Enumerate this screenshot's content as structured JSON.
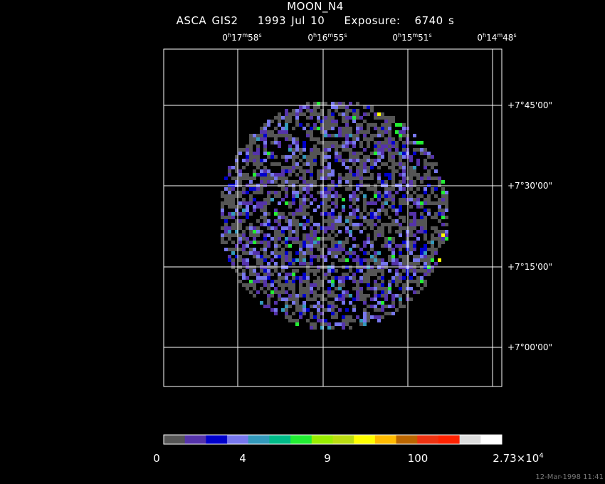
{
  "title": "MOON_N4",
  "subtitle": {
    "instrument": "ASCA GIS2",
    "date": "1993 Jul 10",
    "exposure_label": "Exposure:",
    "exposure_value": "6740 s"
  },
  "timestamp": "12-Mar-1998 11:41",
  "colors": {
    "background": "#000000",
    "grid": "#ffffff",
    "colorbar": [
      "#555555",
      "#5533aa",
      "#0000cc",
      "#7777ee",
      "#3399bb",
      "#00bb88",
      "#22ee33",
      "#99ee00",
      "#bbdd11",
      "#ffff00",
      "#ffbb00",
      "#bb6600",
      "#ee3311",
      "#ff2200",
      "#dddddd",
      "#ffffff"
    ]
  },
  "chart_data": {
    "type": "heatmap",
    "title": "MOON_N4",
    "subtitle": "ASCA GIS2   1993 Jul 10   Exposure:  6740 s",
    "x_axis": {
      "ticks": [
        {
          "h": "0",
          "m": "17",
          "s": "58"
        },
        {
          "h": "0",
          "m": "16",
          "s": "55"
        },
        {
          "h": "0",
          "m": "15",
          "s": "51"
        },
        {
          "h": "0",
          "m": "14",
          "s": "48"
        }
      ]
    },
    "y_axis": {
      "ticks": [
        "+7°45'00\"",
        "+7°30'00\"",
        "+7°15'00\"",
        "+7°00'00\""
      ]
    },
    "colorbar": {
      "scale": "log",
      "labels": [
        {
          "text": "0"
        },
        {
          "text": "4"
        },
        {
          "text": "9"
        },
        {
          "text": "100"
        },
        {
          "text": "2.73×10",
          "sup": "4"
        }
      ]
    }
  }
}
